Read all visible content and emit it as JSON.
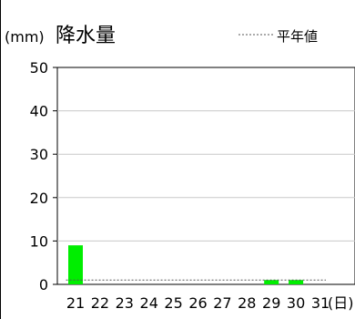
{
  "chart_data": {
    "type": "bar",
    "title": "降水量",
    "unit_label": "(mm)",
    "xunit_label": "(日)",
    "legend": {
      "label": "平年値",
      "placement": "top-right",
      "style": "dotted"
    },
    "categories": [
      "21",
      "22",
      "23",
      "24",
      "25",
      "26",
      "27",
      "28",
      "29",
      "30",
      "31"
    ],
    "series": [
      {
        "values": [
          9,
          0,
          0,
          0,
          0,
          0,
          0,
          0,
          1,
          1,
          0
        ],
        "color": "#00ee00"
      }
    ],
    "normal_values": [
      1,
      1,
      1,
      1,
      1,
      1,
      1,
      1,
      1,
      1,
      1
    ],
    "yticks": [
      0,
      10,
      20,
      30,
      40,
      50
    ],
    "ylim": [
      0,
      50
    ],
    "grid": true,
    "colors": {
      "bar": "#00ee00",
      "grid": "#c8c8c8",
      "axis": "#000000",
      "normal_line": "#555555"
    }
  }
}
